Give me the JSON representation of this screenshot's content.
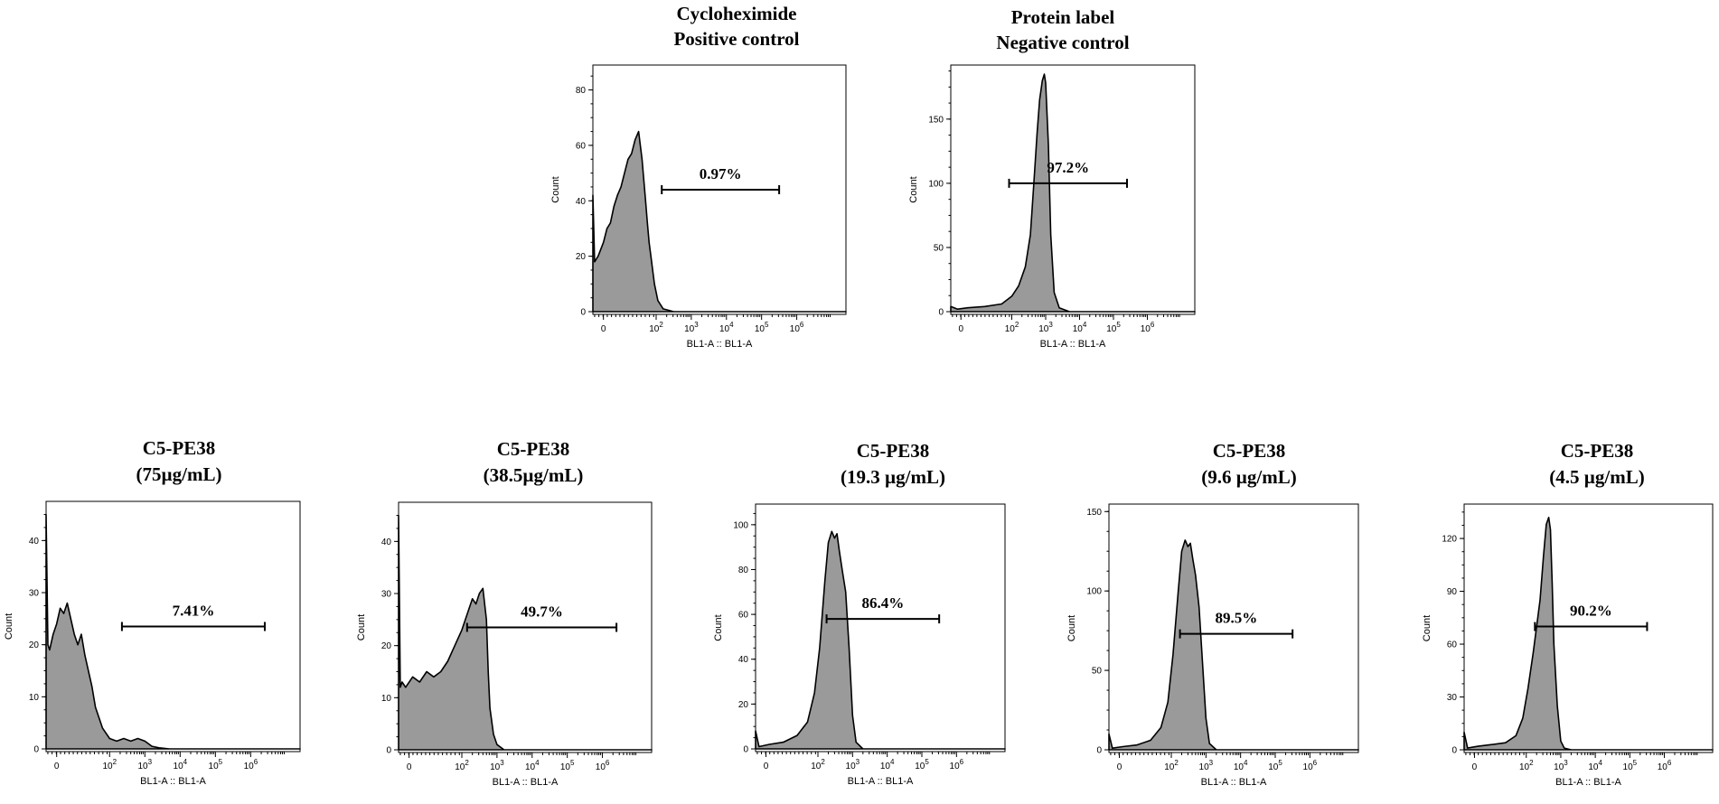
{
  "figure": {
    "axis_x_label": "BL1-A :: BL1-A",
    "axis_y_label": "Count"
  },
  "chart_data": [
    {
      "type": "area",
      "title_lines": [
        "Cycloheximide",
        "Positive control"
      ],
      "xlabel": "BL1-A :: BL1-A",
      "ylabel": "Count",
      "xlim": [
        -1,
        6.2
      ],
      "ylim": [
        0,
        88
      ],
      "y_ticks": [
        0,
        20,
        40,
        60,
        80
      ],
      "x_tick_labels": [
        {
          "base": "0",
          "exp": ""
        },
        {
          "base": "10",
          "exp": "2"
        },
        {
          "base": "10",
          "exp": "3"
        },
        {
          "base": "10",
          "exp": "4"
        },
        {
          "base": "10",
          "exp": "5"
        },
        {
          "base": "10",
          "exp": "6"
        }
      ],
      "x_tick_positions": [
        -0.7,
        0.8,
        1.8,
        2.8,
        3.8,
        4.8
      ],
      "gate": {
        "label": "0.97%",
        "x_start": 0.96,
        "x_end": 4.3,
        "y": 44
      },
      "histogram": {
        "x": [
          -1,
          -0.95,
          -0.85,
          -0.7,
          -0.6,
          -0.5,
          -0.4,
          -0.3,
          -0.2,
          -0.1,
          0,
          0.1,
          0.2,
          0.3,
          0.4,
          0.5,
          0.55,
          0.6,
          0.65,
          0.75,
          0.85,
          1.0,
          1.3,
          6.2
        ],
        "y": [
          42,
          18,
          20,
          25,
          30,
          32,
          38,
          42,
          45,
          50,
          55,
          57,
          62,
          65,
          55,
          40,
          32,
          25,
          20,
          10,
          4,
          1,
          0,
          0
        ]
      }
    },
    {
      "type": "area",
      "title_lines": [
        "Protein label",
        "Negative control"
      ],
      "xlabel": "BL1-A :: BL1-A",
      "ylabel": "Count",
      "xlim": [
        -1,
        6.2
      ],
      "ylim": [
        0,
        190
      ],
      "y_ticks": [
        0,
        50,
        100,
        150
      ],
      "x_tick_labels": [
        {
          "base": "0",
          "exp": ""
        },
        {
          "base": "10",
          "exp": "2"
        },
        {
          "base": "10",
          "exp": "3"
        },
        {
          "base": "10",
          "exp": "4"
        },
        {
          "base": "10",
          "exp": "5"
        },
        {
          "base": "10",
          "exp": "6"
        }
      ],
      "x_tick_positions": [
        -0.7,
        0.8,
        1.8,
        2.8,
        3.8,
        4.8
      ],
      "gate": {
        "label": "97.2%",
        "x_start": 0.72,
        "x_end": 4.2,
        "y": 100
      },
      "histogram": {
        "x": [
          -1,
          -0.8,
          -0.5,
          0,
          0.5,
          0.8,
          1.0,
          1.2,
          1.35,
          1.45,
          1.55,
          1.62,
          1.7,
          1.76,
          1.8,
          1.88,
          1.95,
          2.05,
          2.2,
          2.5,
          6.2
        ],
        "y": [
          4,
          2,
          3,
          4,
          6,
          12,
          20,
          35,
          60,
          100,
          140,
          165,
          180,
          185,
          178,
          130,
          60,
          15,
          3,
          0,
          0
        ]
      }
    },
    {
      "type": "area",
      "title_lines": [
        "C5-PE38",
        "(75µg/mL)"
      ],
      "xlabel": "BL1-A :: BL1-A",
      "ylabel": "Count",
      "xlim": [
        -1,
        6.2
      ],
      "ylim": [
        0,
        47
      ],
      "y_ticks": [
        0,
        10,
        20,
        30,
        40
      ],
      "x_tick_labels": [
        {
          "base": "0",
          "exp": ""
        },
        {
          "base": "10",
          "exp": "2"
        },
        {
          "base": "10",
          "exp": "3"
        },
        {
          "base": "10",
          "exp": "4"
        },
        {
          "base": "10",
          "exp": "5"
        },
        {
          "base": "10",
          "exp": "6"
        }
      ],
      "x_tick_positions": [
        -0.7,
        0.8,
        1.8,
        2.8,
        3.8,
        4.8
      ],
      "gate": {
        "label": "7.41%",
        "x_start": 1.15,
        "x_end": 5.2,
        "y": 23.5
      },
      "histogram": {
        "x": [
          -1,
          -0.95,
          -0.9,
          -0.8,
          -0.7,
          -0.6,
          -0.5,
          -0.4,
          -0.3,
          -0.2,
          -0.1,
          0,
          0.1,
          0.2,
          0.3,
          0.4,
          0.6,
          0.8,
          1.0,
          1.2,
          1.4,
          1.6,
          1.8,
          2.0,
          2.2,
          2.5,
          6.2
        ],
        "y": [
          45,
          20,
          19,
          22,
          24,
          27,
          26,
          28,
          25,
          22,
          20,
          22,
          18,
          15,
          12,
          8,
          4,
          2,
          1.5,
          2,
          1.5,
          2,
          1.5,
          0.5,
          0.2,
          0,
          0
        ]
      }
    },
    {
      "type": "area",
      "title_lines": [
        "C5-PE38",
        "(38.5µg/mL)"
      ],
      "xlabel": "BL1-A :: BL1-A",
      "ylabel": "Count",
      "xlim": [
        -1,
        6.2
      ],
      "ylim": [
        0,
        47
      ],
      "y_ticks": [
        0,
        10,
        20,
        30,
        40
      ],
      "x_tick_labels": [
        {
          "base": "0",
          "exp": ""
        },
        {
          "base": "10",
          "exp": "2"
        },
        {
          "base": "10",
          "exp": "3"
        },
        {
          "base": "10",
          "exp": "4"
        },
        {
          "base": "10",
          "exp": "5"
        },
        {
          "base": "10",
          "exp": "6"
        }
      ],
      "x_tick_positions": [
        -0.7,
        0.8,
        1.8,
        2.8,
        3.8,
        4.8
      ],
      "gate": {
        "label": "49.7%",
        "x_start": 0.95,
        "x_end": 5.2,
        "y": 23.5
      },
      "histogram": {
        "x": [
          -1,
          -0.95,
          -0.9,
          -0.8,
          -0.6,
          -0.4,
          -0.2,
          0,
          0.2,
          0.4,
          0.6,
          0.8,
          1.0,
          1.1,
          1.2,
          1.3,
          1.4,
          1.5,
          1.55,
          1.6,
          1.7,
          1.8,
          2.0,
          6.2
        ],
        "y": [
          45,
          12,
          13,
          12,
          14,
          13,
          15,
          14,
          15,
          17,
          20,
          23,
          27,
          29,
          28,
          30,
          31,
          25,
          15,
          8,
          3,
          1,
          0,
          0
        ]
      }
    },
    {
      "type": "area",
      "title_lines": [
        "C5-PE38",
        "(19.3 µg/mL)"
      ],
      "xlabel": "BL1-A :: BL1-A",
      "ylabel": "Count",
      "xlim": [
        -1,
        6.2
      ],
      "ylim": [
        0,
        108
      ],
      "y_ticks": [
        0,
        20,
        40,
        60,
        80,
        100
      ],
      "x_tick_labels": [
        {
          "base": "0",
          "exp": ""
        },
        {
          "base": "10",
          "exp": "2"
        },
        {
          "base": "10",
          "exp": "3"
        },
        {
          "base": "10",
          "exp": "4"
        },
        {
          "base": "10",
          "exp": "5"
        },
        {
          "base": "10",
          "exp": "6"
        }
      ],
      "x_tick_positions": [
        -0.7,
        0.8,
        1.8,
        2.8,
        3.8,
        4.8
      ],
      "gate": {
        "label": "86.4%",
        "x_start": 1.05,
        "x_end": 4.3,
        "y": 58
      },
      "histogram": {
        "x": [
          -1,
          -0.9,
          -0.6,
          -0.2,
          0.2,
          0.5,
          0.7,
          0.85,
          1.0,
          1.1,
          1.2,
          1.28,
          1.35,
          1.42,
          1.5,
          1.6,
          1.7,
          1.8,
          1.9,
          2.1,
          6.2
        ],
        "y": [
          8,
          1,
          2,
          3,
          6,
          12,
          25,
          45,
          75,
          92,
          97,
          94,
          96,
          88,
          80,
          70,
          45,
          15,
          3,
          0,
          0
        ]
      }
    },
    {
      "type": "area",
      "title_lines": [
        "C5-PE38",
        "(9.6 µg/mL)"
      ],
      "xlabel": "BL1-A :: BL1-A",
      "ylabel": "Count",
      "xlim": [
        -1,
        6.2
      ],
      "ylim": [
        0,
        153
      ],
      "y_ticks": [
        0,
        50,
        100,
        150
      ],
      "x_tick_labels": [
        {
          "base": "0",
          "exp": ""
        },
        {
          "base": "10",
          "exp": "2"
        },
        {
          "base": "10",
          "exp": "3"
        },
        {
          "base": "10",
          "exp": "4"
        },
        {
          "base": "10",
          "exp": "5"
        },
        {
          "base": "10",
          "exp": "6"
        }
      ],
      "x_tick_positions": [
        -0.7,
        0.8,
        1.8,
        2.8,
        3.8,
        4.8
      ],
      "gate": {
        "label": "89.5%",
        "x_start": 1.05,
        "x_end": 4.3,
        "y": 73
      },
      "histogram": {
        "x": [
          -1,
          -0.9,
          -0.6,
          -0.2,
          0.2,
          0.5,
          0.7,
          0.85,
          1.0,
          1.1,
          1.2,
          1.28,
          1.35,
          1.42,
          1.5,
          1.6,
          1.7,
          1.8,
          1.9,
          2.1,
          6.2
        ],
        "y": [
          10,
          1,
          2,
          3,
          6,
          14,
          30,
          60,
          100,
          125,
          132,
          128,
          130,
          120,
          110,
          90,
          55,
          20,
          4,
          0,
          0
        ]
      }
    },
    {
      "type": "area",
      "title_lines": [
        "C5-PE38",
        "(4.5 µg/mL)"
      ],
      "xlabel": "BL1-A :: BL1-A",
      "ylabel": "Count",
      "xlim": [
        -1,
        6.2
      ],
      "ylim": [
        0,
        138
      ],
      "y_ticks": [
        0,
        30,
        60,
        90,
        120
      ],
      "x_tick_labels": [
        {
          "base": "0",
          "exp": ""
        },
        {
          "base": "10",
          "exp": "2"
        },
        {
          "base": "10",
          "exp": "3"
        },
        {
          "base": "10",
          "exp": "4"
        },
        {
          "base": "10",
          "exp": "5"
        },
        {
          "base": "10",
          "exp": "6"
        }
      ],
      "x_tick_positions": [
        -0.7,
        0.8,
        1.8,
        2.8,
        3.8,
        4.8
      ],
      "gate": {
        "label": "90.2%",
        "x_start": 1.05,
        "x_end": 4.3,
        "y": 70
      },
      "histogram": {
        "x": [
          -1,
          -0.9,
          -0.6,
          -0.2,
          0.2,
          0.5,
          0.7,
          0.85,
          1.0,
          1.1,
          1.2,
          1.3,
          1.38,
          1.45,
          1.5,
          1.55,
          1.6,
          1.7,
          1.8,
          1.9,
          2.1,
          6.2
        ],
        "y": [
          10,
          1,
          2,
          3,
          4,
          8,
          18,
          35,
          55,
          70,
          85,
          110,
          128,
          132,
          125,
          95,
          60,
          25,
          5,
          1,
          0,
          0
        ]
      }
    }
  ]
}
